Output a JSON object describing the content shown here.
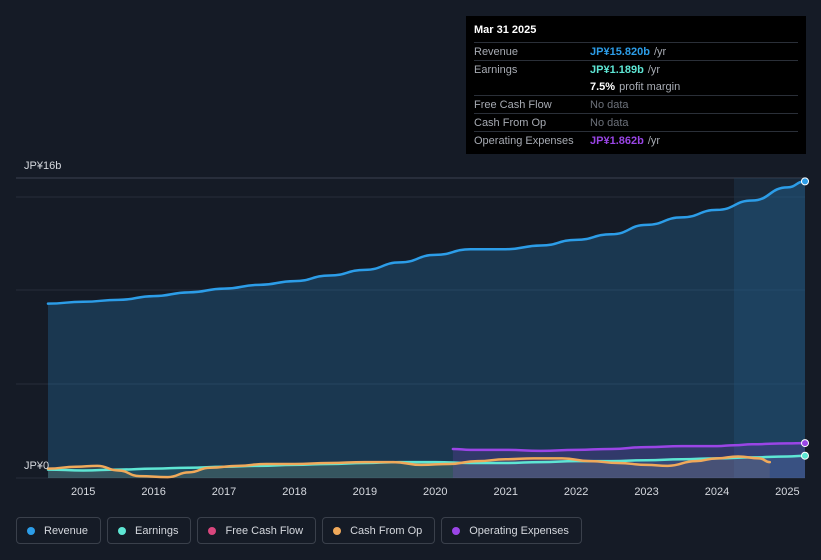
{
  "tooltip": {
    "date": "Mar 31 2025",
    "revenue_label": "Revenue",
    "revenue_value": "JP¥15.820b",
    "revenue_unit": "/yr",
    "earnings_label": "Earnings",
    "earnings_value": "JP¥1.189b",
    "earnings_unit": "/yr",
    "margin_value": "7.5%",
    "margin_label": "profit margin",
    "fcf_label": "Free Cash Flow",
    "fcf_value": "No data",
    "cfo_label": "Cash From Op",
    "cfo_value": "No data",
    "opex_label": "Operating Expenses",
    "opex_value": "JP¥1.862b",
    "opex_unit": "/yr"
  },
  "legend": [
    {
      "label": "Revenue",
      "color": "#2c9de8"
    },
    {
      "label": "Earnings",
      "color": "#5ee6d4"
    },
    {
      "label": "Free Cash Flow",
      "color": "#d9467d"
    },
    {
      "label": "Cash From Op",
      "color": "#f0a95a"
    },
    {
      "label": "Operating Expenses",
      "color": "#9a45e6"
    }
  ],
  "chart_data": {
    "type": "line",
    "ylim": [
      0,
      16
    ],
    "y_unit": "JP¥ billions",
    "ylabel_top": "JP¥16b",
    "ylabel_bottom": "JP¥0",
    "xlim": [
      2014.5,
      2025.25
    ],
    "x_ticks": [
      "2015",
      "2016",
      "2017",
      "2018",
      "2019",
      "2020",
      "2021",
      "2022",
      "2023",
      "2024",
      "2025"
    ],
    "series": [
      {
        "name": "Revenue",
        "color": "#2c9de8",
        "x": [
          2014.5,
          2015.0,
          2015.5,
          2016.0,
          2016.5,
          2017.0,
          2017.5,
          2018.0,
          2018.5,
          2019.0,
          2019.5,
          2020.0,
          2020.5,
          2021.0,
          2021.5,
          2022.0,
          2022.5,
          2023.0,
          2023.5,
          2024.0,
          2024.5,
          2025.0,
          2025.25
        ],
        "values": [
          9.3,
          9.4,
          9.5,
          9.7,
          9.9,
          10.1,
          10.3,
          10.5,
          10.8,
          11.1,
          11.5,
          11.9,
          12.2,
          12.2,
          12.4,
          12.7,
          13.0,
          13.5,
          13.9,
          14.3,
          14.8,
          15.5,
          15.82
        ]
      },
      {
        "name": "Earnings",
        "color": "#5ee6d4",
        "x": [
          2014.5,
          2015.0,
          2015.5,
          2016.0,
          2016.5,
          2017.0,
          2017.5,
          2018.0,
          2018.5,
          2019.0,
          2019.5,
          2020.0,
          2020.5,
          2021.0,
          2021.5,
          2022.0,
          2022.5,
          2023.0,
          2023.5,
          2024.0,
          2024.5,
          2025.0,
          2025.25
        ],
        "values": [
          0.45,
          0.4,
          0.45,
          0.5,
          0.55,
          0.6,
          0.65,
          0.7,
          0.75,
          0.8,
          0.85,
          0.85,
          0.8,
          0.8,
          0.85,
          0.9,
          0.9,
          0.95,
          1.0,
          1.05,
          1.1,
          1.15,
          1.189
        ]
      },
      {
        "name": "Cash From Op",
        "color": "#f0a95a",
        "x": [
          2014.5,
          2014.9,
          2015.2,
          2015.5,
          2015.8,
          2016.2,
          2016.5,
          2016.8,
          2017.2,
          2017.6,
          2018.0,
          2018.5,
          2019.0,
          2019.4,
          2019.8,
          2020.2,
          2020.6,
          2021.0,
          2021.4,
          2021.8,
          2022.2,
          2022.6,
          2023.0,
          2023.3,
          2023.7,
          2024.0,
          2024.3,
          2024.6,
          2024.75
        ],
        "values": [
          0.5,
          0.6,
          0.65,
          0.4,
          0.1,
          0.05,
          0.3,
          0.55,
          0.65,
          0.75,
          0.75,
          0.8,
          0.85,
          0.85,
          0.7,
          0.75,
          0.9,
          1.0,
          1.05,
          1.05,
          0.9,
          0.8,
          0.7,
          0.65,
          0.9,
          1.05,
          1.15,
          1.05,
          0.85
        ]
      },
      {
        "name": "Operating Expenses",
        "color": "#9a45e6",
        "x": [
          2020.25,
          2020.5,
          2021.0,
          2021.5,
          2022.0,
          2022.5,
          2023.0,
          2023.5,
          2024.0,
          2024.25,
          2024.5,
          2025.0,
          2025.25
        ],
        "values": [
          1.55,
          1.5,
          1.5,
          1.45,
          1.5,
          1.55,
          1.65,
          1.7,
          1.7,
          1.75,
          1.8,
          1.85,
          1.862
        ]
      }
    ]
  }
}
